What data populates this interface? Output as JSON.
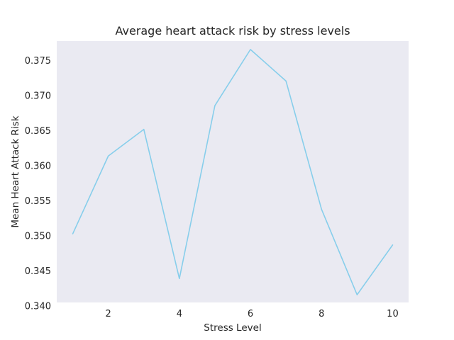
{
  "chart_data": {
    "type": "line",
    "title": "Average heart attack risk by stress levels",
    "xlabel": "Stress Level",
    "ylabel": "Mean Heart Attack Risk",
    "x": [
      1,
      2,
      3,
      4,
      5,
      6,
      7,
      8,
      9,
      10
    ],
    "series": [
      {
        "values": [
          0.3503,
          0.3614,
          0.3652,
          0.3439,
          0.3686,
          0.3766,
          0.3721,
          0.3538,
          0.3416,
          0.3487
        ],
        "color": "#87ceeb"
      }
    ],
    "xlim": [
      0.55,
      10.45
    ],
    "ylim": [
      0.3405,
      0.3778
    ],
    "xticks": [
      2,
      4,
      6,
      8,
      10
    ],
    "xtick_labels": [
      "2",
      "4",
      "6",
      "8",
      "10"
    ],
    "yticks": [
      0.34,
      0.345,
      0.35,
      0.355,
      0.36,
      0.365,
      0.37,
      0.375
    ],
    "ytick_labels": [
      "0.340",
      "0.345",
      "0.350",
      "0.355",
      "0.360",
      "0.365",
      "0.370",
      "0.375"
    ],
    "grid": false,
    "background": "#eaeaf2"
  }
}
